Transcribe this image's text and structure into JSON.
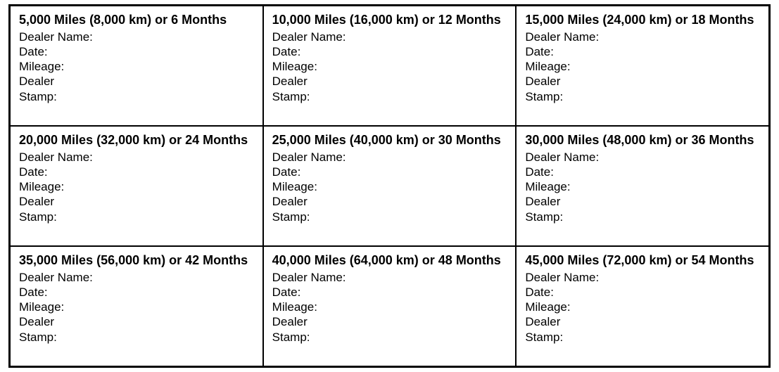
{
  "table": {
    "type": "table",
    "columns": 3,
    "rows": 3,
    "border_color": "#000000",
    "background_color": "#ffffff",
    "heading_fontsize": 18,
    "heading_fontweight": 700,
    "field_fontsize": 17,
    "field_fontweight": 400,
    "text_color": "#000000",
    "field_labels": {
      "dealer_name": "Dealer Name:",
      "date": "Date:",
      "mileage": "Mileage:",
      "dealer": "Dealer",
      "stamp": "Stamp:"
    },
    "cells": [
      {
        "heading": "5,000 Miles (8,000 km) or 6 Months"
      },
      {
        "heading": "10,000 Miles (16,000 km) or 12 Months"
      },
      {
        "heading": "15,000 Miles (24,000 km) or 18 Months"
      },
      {
        "heading": "20,000 Miles (32,000 km) or 24 Months"
      },
      {
        "heading": "25,000 Miles (40,000 km) or 30 Months"
      },
      {
        "heading": "30,000 Miles (48,000 km) or 36 Months"
      },
      {
        "heading": "35,000 Miles (56,000 km) or 42 Months"
      },
      {
        "heading": "40,000 Miles (64,000 km) or 48 Months"
      },
      {
        "heading": "45,000 Miles (72,000 km) or 54 Months"
      }
    ]
  }
}
